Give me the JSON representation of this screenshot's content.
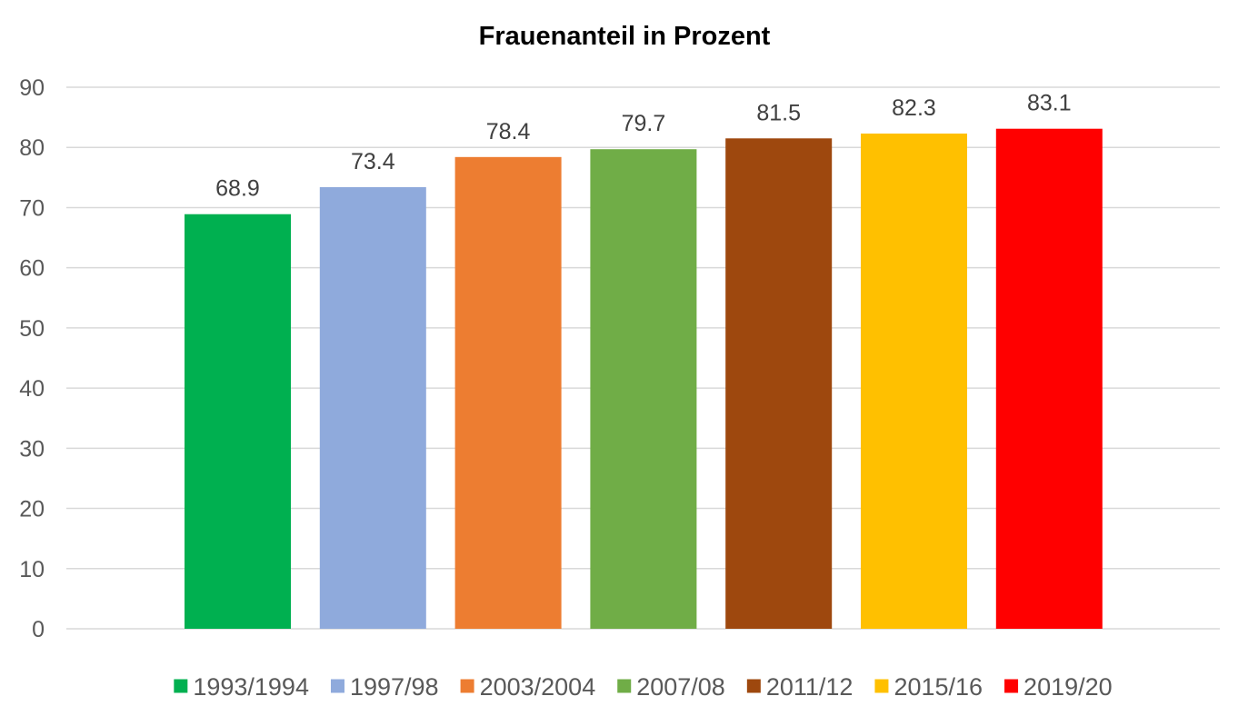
{
  "chart_data": {
    "type": "bar",
    "title": "Frauenanteil in Prozent",
    "xlabel": "",
    "ylabel": "",
    "ylim": [
      0,
      90
    ],
    "yticks": [
      0,
      10,
      20,
      30,
      40,
      50,
      60,
      70,
      80,
      90
    ],
    "grid": true,
    "legend_position": "bottom",
    "series": [
      {
        "name": "1993/1994",
        "value": 68.9,
        "label": "68.9",
        "color": "#00b050"
      },
      {
        "name": "1997/98",
        "value": 73.4,
        "label": "73.4",
        "color": "#8faadc"
      },
      {
        "name": "2003/2004",
        "value": 78.4,
        "label": "78.4",
        "color": "#ed7d31"
      },
      {
        "name": "2007/08",
        "value": 79.7,
        "label": "79.7",
        "color": "#70ad47"
      },
      {
        "name": "2011/12",
        "value": 81.5,
        "label": "81.5",
        "color": "#9e480e"
      },
      {
        "name": "2015/16",
        "value": 82.3,
        "label": "82.3",
        "color": "#ffc000"
      },
      {
        "name": "2019/20",
        "value": 83.1,
        "label": "83.1",
        "color": "#ff0000"
      }
    ]
  }
}
